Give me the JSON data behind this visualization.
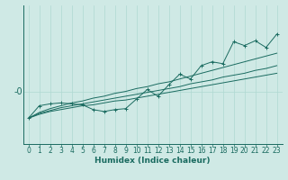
{
  "xlabel": "Humidex (Indice chaleur)",
  "ylabel": "-0",
  "bg_color": "#cfe9e5",
  "line_color": "#1a6b60",
  "grid_color": "#afd8d2",
  "x_ticks": [
    0,
    1,
    2,
    3,
    4,
    5,
    6,
    7,
    8,
    9,
    10,
    11,
    12,
    13,
    14,
    15,
    16,
    17,
    18,
    19,
    20,
    21,
    22,
    23
  ],
  "humidex_x": [
    0,
    1,
    2,
    3,
    4,
    5,
    6,
    7,
    8,
    9,
    10,
    11,
    12,
    13,
    14,
    15,
    16,
    17,
    18,
    19,
    20,
    21,
    22,
    23
  ],
  "main_y": [
    -2.8,
    -1.5,
    -1.3,
    -1.2,
    -1.3,
    -1.4,
    -1.9,
    -2.1,
    -1.9,
    -1.8,
    -0.8,
    0.2,
    -0.5,
    0.7,
    1.8,
    1.3,
    2.7,
    3.1,
    2.9,
    5.2,
    4.8,
    5.3,
    4.6,
    6.0
  ],
  "band_low": [
    -2.8,
    -2.4,
    -2.1,
    -1.9,
    -1.7,
    -1.5,
    -1.4,
    -1.2,
    -1.0,
    -0.9,
    -0.7,
    -0.5,
    -0.3,
    -0.1,
    0.1,
    0.3,
    0.5,
    0.7,
    0.9,
    1.1,
    1.3,
    1.5,
    1.7,
    1.9
  ],
  "band_mid": [
    -2.8,
    -2.3,
    -2.0,
    -1.7,
    -1.5,
    -1.3,
    -1.1,
    -0.9,
    -0.7,
    -0.5,
    -0.3,
    -0.1,
    0.1,
    0.3,
    0.5,
    0.8,
    1.0,
    1.2,
    1.5,
    1.7,
    1.9,
    2.2,
    2.4,
    2.7
  ],
  "band_high": [
    -2.8,
    -2.2,
    -1.8,
    -1.5,
    -1.2,
    -1.0,
    -0.7,
    -0.5,
    -0.2,
    0.0,
    0.3,
    0.5,
    0.8,
    1.0,
    1.3,
    1.6,
    1.9,
    2.2,
    2.5,
    2.8,
    3.1,
    3.4,
    3.7,
    4.0
  ],
  "ylim": [
    -5.5,
    9.0
  ],
  "y_zero_label": "-0",
  "y_zero_pos": 0.0,
  "fontsize_xlabel": 6.5,
  "fontsize_ylabel": 7,
  "fontsize_tick": 5.5
}
